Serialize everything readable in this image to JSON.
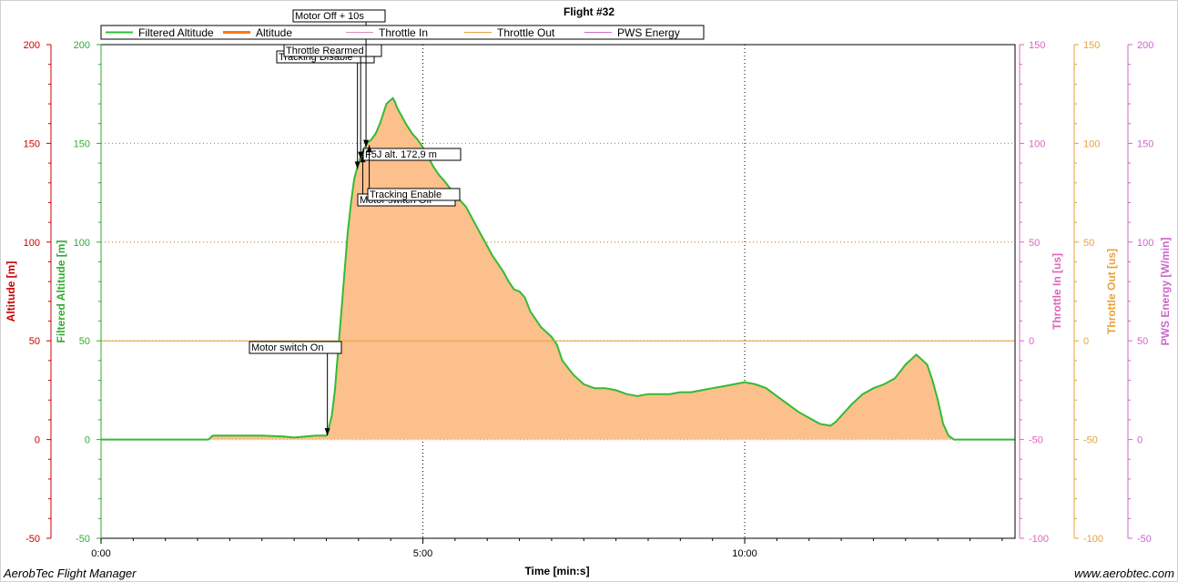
{
  "chart_data": {
    "type": "area",
    "title": "Flight #32",
    "xlabel": "Time [min:s]",
    "x_unit": "seconds",
    "xlim": [
      0,
      852
    ],
    "x_ticks": [
      {
        "value": 0,
        "label": "0:00"
      },
      {
        "value": 300,
        "label": "5:00"
      },
      {
        "value": 600,
        "label": "10:00"
      }
    ],
    "grid": true,
    "legend": {
      "position": "top",
      "entries": [
        {
          "name": "Filtered Altitude",
          "color": "#33bb33"
        },
        {
          "name": "Altitude",
          "color": "#ff7711"
        },
        {
          "name": "Throttle In",
          "color": "#dd88bb"
        },
        {
          "name": "Throttle Out",
          "color": "#e6a23c"
        },
        {
          "name": "PWS Energy",
          "color": "#cc66cc"
        }
      ]
    },
    "axes": [
      {
        "label": "Altitude [m]",
        "color": "#cc0000",
        "side": "left",
        "ylim": [
          -50,
          200
        ],
        "ticks": [
          "-50",
          "0",
          "50",
          "100",
          "150",
          "200"
        ]
      },
      {
        "label": "Filtered Altitude [m]",
        "color": "#33aa33",
        "side": "left",
        "ylim": [
          -50,
          200
        ],
        "ticks": [
          "-50",
          "0",
          "50",
          "100",
          "150",
          "200"
        ]
      },
      {
        "label": "Throttle In [us]",
        "color": "#dd66bb",
        "side": "right",
        "ylim": [
          -100,
          150
        ],
        "ticks": [
          "-100",
          "-50",
          "0",
          "50",
          "100",
          "150"
        ]
      },
      {
        "label": "Throttle Out [us]",
        "color": "#e6a23c",
        "side": "right",
        "ylim": [
          -100,
          150
        ],
        "ticks": [
          "-100",
          "-50",
          "0",
          "50",
          "100",
          "150"
        ]
      },
      {
        "label": "PWS Energy [W/min]",
        "color": "#cc66cc",
        "side": "right",
        "ylim": [
          -50,
          200
        ],
        "ticks": [
          "-50",
          "0",
          "50",
          "100",
          "150",
          "200"
        ]
      }
    ],
    "series": [
      {
        "name": "Filtered Altitude",
        "color": "#33bb33",
        "fill": "#fbc08c",
        "x": [
          0,
          50,
          100,
          104,
          150,
          170,
          180,
          200,
          210,
          211,
          215,
          218,
          221,
          224,
          227,
          230,
          233,
          236,
          240,
          244,
          248,
          252,
          256,
          260,
          263,
          266,
          268,
          270,
          272,
          274,
          276,
          278,
          280,
          284,
          290,
          295,
          300,
          305,
          310,
          315,
          320,
          330,
          340,
          350,
          360,
          365,
          370,
          375,
          380,
          385,
          390,
          395,
          400,
          410,
          420,
          425,
          430,
          440,
          450,
          460,
          470,
          480,
          490,
          500,
          510,
          520,
          530,
          540,
          550,
          560,
          570,
          580,
          590,
          600,
          610,
          620,
          630,
          640,
          650,
          660,
          670,
          680,
          685,
          690,
          695,
          700,
          710,
          720,
          730,
          740,
          750,
          760,
          770,
          775,
          780,
          785,
          790,
          795,
          800,
          805,
          810,
          815,
          820,
          825,
          830,
          840,
          852
        ],
        "values": [
          0,
          0,
          0,
          2,
          2,
          1.5,
          1,
          2,
          2,
          3,
          12,
          25,
          45,
          65,
          85,
          105,
          120,
          132,
          140,
          146,
          150,
          152,
          155,
          160,
          165,
          170,
          171,
          172,
          172.9,
          171,
          168,
          166,
          164,
          160,
          155,
          152,
          148,
          143,
          138,
          134,
          131,
          124,
          118,
          108,
          98,
          93,
          89,
          85,
          80,
          76,
          75,
          72,
          65,
          57,
          52,
          48,
          40,
          33,
          28,
          26,
          26,
          25,
          23,
          22,
          23,
          23,
          23,
          24,
          24,
          25,
          26,
          27,
          28,
          29,
          28,
          26,
          22,
          18,
          14,
          11,
          8,
          7,
          9,
          12,
          15,
          18,
          23,
          26,
          28,
          31,
          38,
          43,
          38,
          30,
          20,
          8,
          2,
          0,
          0,
          0,
          0,
          0,
          0,
          0,
          0,
          0,
          0
        ]
      },
      {
        "name": "Throttle Out",
        "color": "#e6a23c",
        "x": [
          0,
          852
        ],
        "values": [
          0,
          0
        ]
      }
    ],
    "annotations": [
      {
        "label": "Motor switch On",
        "x": 211
      },
      {
        "label": "Tracking Disable",
        "x": 239
      },
      {
        "label": "Throttle Rearmed",
        "x": 242
      },
      {
        "label": "Motor Off + 10s",
        "x": 247
      },
      {
        "label": "Motor switch Off",
        "x": 244
      },
      {
        "label": "F5J alt. 172,9 m",
        "x": 245
      },
      {
        "label": "Tracking Enable",
        "x": 250
      }
    ]
  },
  "footer": {
    "left": "AerobTec Flight Manager",
    "right": "www.aerobtec.com"
  }
}
